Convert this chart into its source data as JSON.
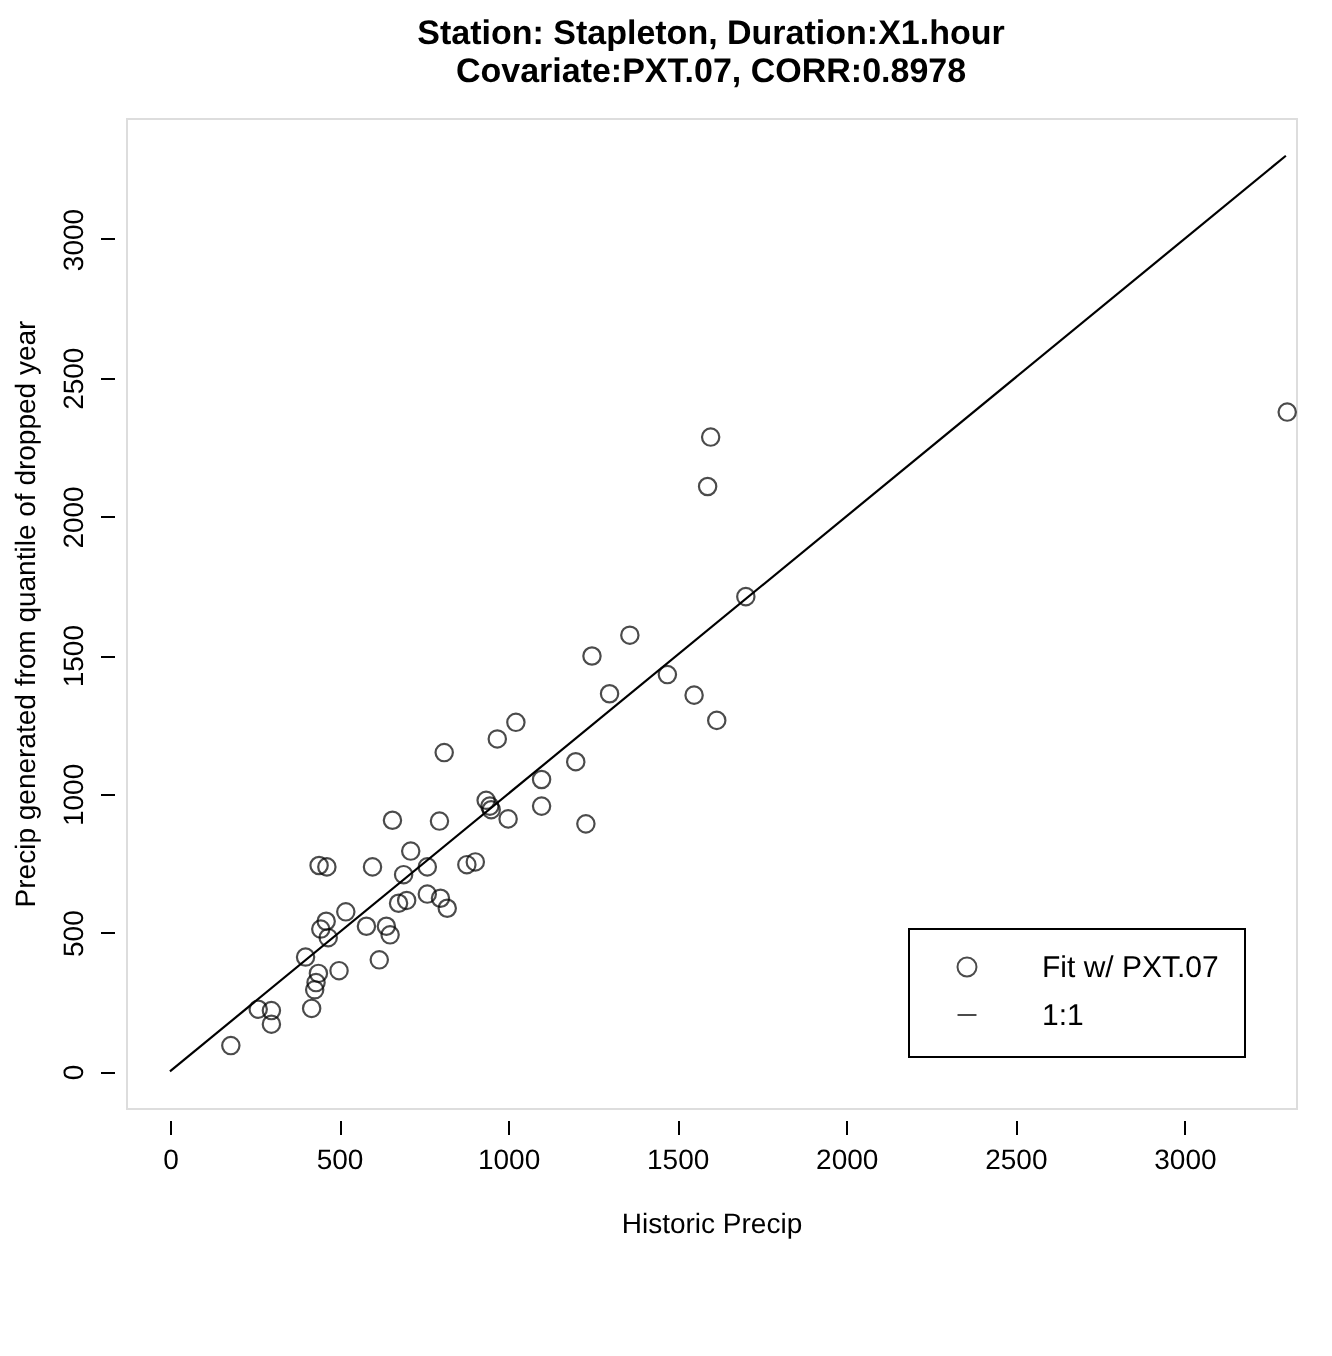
{
  "chart_data": {
    "type": "scatter",
    "title": [
      "Station: Stapleton, Duration:X1.hour",
      "Covariate:PXT.07, CORR:0.8978"
    ],
    "xlabel": "Historic Precip",
    "ylabel": "Precip generated from quantile of dropped year",
    "xlim": [
      -130,
      3330
    ],
    "ylim": [
      -132,
      3436
    ],
    "xticks": [
      0,
      500,
      1000,
      1500,
      2000,
      2500,
      3000
    ],
    "yticks": [
      0,
      500,
      1000,
      1500,
      2000,
      2500,
      3000
    ],
    "grid": false,
    "legend": "bottom right",
    "series": [
      {
        "name": "Fit w/ PXT.07",
        "marker": "circle",
        "color": "#000000",
        "x": [
          180,
          261,
          300,
          300,
          419,
          428,
          432,
          439,
          500,
          401,
          468,
          446,
          462,
          520,
          581,
          640,
          651,
          619,
          441,
          464,
          599,
          691,
          712,
          761,
          676,
          700,
          761,
          800,
          820,
          658,
          797,
          878,
          903,
          811,
          935,
          946,
          950,
          1000,
          968,
          1023,
          1099,
          1099,
          1200,
          1230,
          1248,
          1300,
          1360,
          1471,
          1550,
          1617,
          1590,
          1599,
          1703,
          3304
        ],
        "values": [
          93,
          224,
          219,
          170,
          227,
          294,
          320,
          353,
          363,
          412,
          482,
          513,
          541,
          575,
          523,
          523,
          492,
          402,
          742,
          737,
          737,
          709,
          794,
          737,
          606,
          616,
          639,
          624,
          588,
          905,
          902,
          745,
          755,
          1149,
          977,
          956,
          943,
          910,
          1198,
          1258,
          1052,
          956,
          1116,
          892,
          1497,
          1361,
          1572,
          1430,
          1356,
          1265,
          2108,
          2286,
          1711,
          2376
        ]
      },
      {
        "name": "1:1",
        "type": "line",
        "color": "#000000",
        "line_style": "solid",
        "x": [
          0,
          3300
        ],
        "values": [
          0,
          3300
        ]
      }
    ]
  }
}
